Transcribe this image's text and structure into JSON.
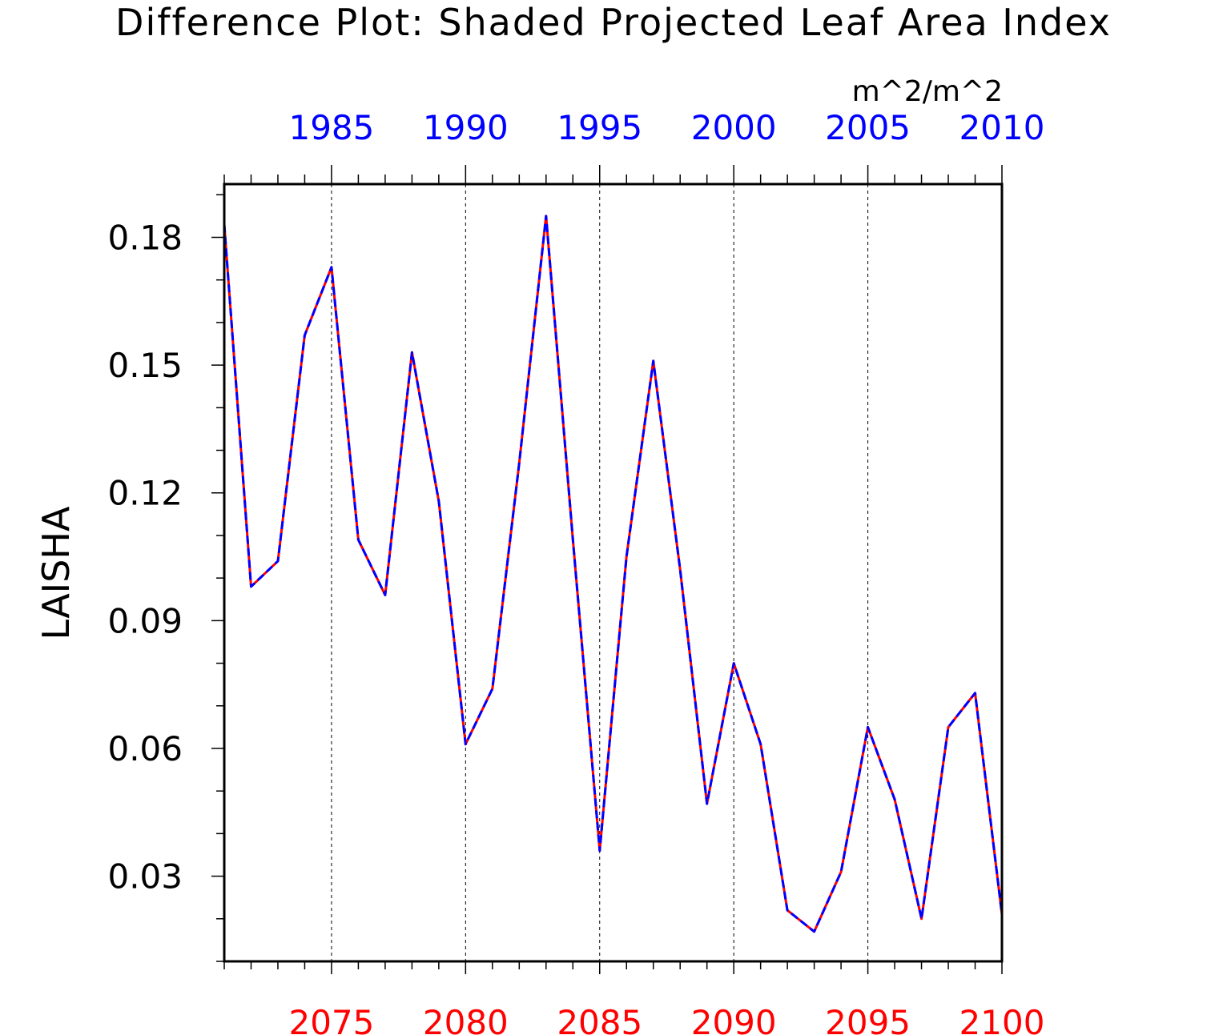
{
  "chart_data": {
    "type": "line",
    "title": "Difference Plot: Shaded Projected Leaf Area Index",
    "units": "m^2/m^2",
    "ylabel": "LAISHA",
    "xlabel": "",
    "ylim": [
      0.01,
      0.1925
    ],
    "y_ticks": [
      0.03,
      0.06,
      0.09,
      0.12,
      0.15,
      0.18
    ],
    "y_tick_labels": [
      "0.03",
      "0.06",
      "0.09",
      "0.12",
      "0.15",
      "0.18"
    ],
    "x_bottom": {
      "range": [
        2071,
        2100
      ],
      "ticks": [
        2075,
        2080,
        2085,
        2090,
        2095,
        2100
      ],
      "tick_labels": [
        "2075",
        "2080",
        "2085",
        "2090",
        "2095",
        "2100"
      ],
      "color": "#ff0000"
    },
    "x_top": {
      "range": [
        1981,
        2010
      ],
      "ticks": [
        1985,
        1990,
        1995,
        2000,
        2005,
        2010
      ],
      "tick_labels": [
        "1985",
        "1990",
        "1995",
        "2000",
        "2005",
        "2010"
      ],
      "color": "#0000ff"
    },
    "grid": "vertical dashed at labeled ticks",
    "x": [
      2071,
      2072,
      2073,
      2074,
      2075,
      2076,
      2077,
      2078,
      2079,
      2080,
      2081,
      2082,
      2083,
      2084,
      2085,
      2086,
      2087,
      2088,
      2089,
      2090,
      2091,
      2092,
      2093,
      2094,
      2095,
      2096,
      2097,
      2098,
      2099,
      2100
    ],
    "series": [
      {
        "color": "#ff0000",
        "style": "solid",
        "values": [
          0.183,
          0.098,
          0.104,
          0.157,
          0.173,
          0.109,
          0.096,
          0.153,
          0.118,
          0.061,
          0.074,
          0.127,
          0.185,
          0.109,
          0.036,
          0.105,
          0.151,
          0.102,
          0.047,
          0.08,
          0.061,
          0.022,
          0.017,
          0.031,
          0.065,
          0.048,
          0.02,
          0.065,
          0.073,
          0.021
        ]
      },
      {
        "color": "#0000ff",
        "style": "dashed",
        "values": [
          0.183,
          0.098,
          0.104,
          0.157,
          0.173,
          0.109,
          0.096,
          0.153,
          0.118,
          0.061,
          0.074,
          0.127,
          0.185,
          0.109,
          0.036,
          0.105,
          0.151,
          0.102,
          0.047,
          0.08,
          0.061,
          0.022,
          0.017,
          0.031,
          0.065,
          0.048,
          0.02,
          0.065,
          0.073,
          0.021
        ]
      }
    ]
  }
}
